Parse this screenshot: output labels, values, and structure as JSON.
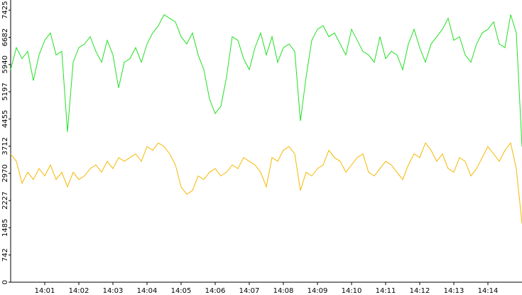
{
  "chart_data": {
    "type": "line",
    "categories": [
      null,
      null,
      null,
      null,
      null,
      null,
      "14:01",
      null,
      null,
      null,
      null,
      null,
      "14:02",
      null,
      null,
      null,
      null,
      null,
      "14:03",
      null,
      null,
      null,
      null,
      null,
      "14:04",
      null,
      null,
      null,
      null,
      null,
      "14:05",
      null,
      null,
      null,
      null,
      null,
      "14:06",
      null,
      null,
      null,
      null,
      null,
      "14:07",
      null,
      null,
      null,
      null,
      null,
      "14:08",
      null,
      null,
      null,
      null,
      null,
      "14:09",
      null,
      null,
      null,
      null,
      null,
      "14:10",
      null,
      null,
      null,
      null,
      null,
      "14:11",
      null,
      null,
      null,
      null,
      null,
      "14:12",
      null,
      null,
      null,
      null,
      null,
      "14:13",
      null,
      null,
      null,
      null,
      null,
      "14:14",
      null,
      null,
      null,
      null,
      null,
      null
    ],
    "series": [
      {
        "color": "#22e022",
        "values": [
          5800,
          6400,
          6100,
          6300,
          5500,
          6200,
          6600,
          6800,
          6200,
          6300,
          4100,
          6000,
          6400,
          6500,
          6700,
          6300,
          6000,
          6600,
          6200,
          5300,
          6000,
          6100,
          6400,
          6000,
          6500,
          6800,
          7000,
          7300,
          7200,
          7100,
          6700,
          6500,
          6800,
          6200,
          5800,
          5000,
          4600,
          4800,
          5600,
          6700,
          6600,
          6100,
          5800,
          6400,
          6800,
          6200,
          6700,
          6000,
          6400,
          6500,
          6300,
          4400,
          5600,
          6600,
          6900,
          7000,
          6700,
          6800,
          6500,
          6200,
          6900,
          6600,
          6300,
          6200,
          6000,
          6700,
          6100,
          6300,
          6200,
          5800,
          6500,
          6900,
          6400,
          6000,
          6500,
          6700,
          6900,
          7200,
          6600,
          6700,
          6200,
          6000,
          6500,
          6800,
          6900,
          7100,
          6500,
          6400,
          7300,
          6800,
          3700
        ]
      },
      {
        "color": "#f5b800",
        "values": [
          3500,
          3300,
          2700,
          3000,
          2800,
          3100,
          2900,
          3200,
          2800,
          3000,
          2600,
          3000,
          2800,
          2900,
          3100,
          3200,
          3000,
          3300,
          3100,
          3400,
          3300,
          3400,
          3500,
          3300,
          3700,
          3600,
          3800,
          3700,
          3500,
          3200,
          2600,
          2400,
          2500,
          2900,
          2800,
          3000,
          3100,
          2900,
          3000,
          3200,
          3100,
          3400,
          3300,
          3200,
          3000,
          2600,
          3400,
          3300,
          3600,
          3700,
          3500,
          2500,
          3000,
          2900,
          3100,
          3200,
          3600,
          3400,
          3300,
          3000,
          3200,
          3400,
          3500,
          3000,
          2900,
          3100,
          3300,
          3200,
          3000,
          2800,
          3200,
          3500,
          3400,
          3800,
          3600,
          3300,
          3500,
          3100,
          3000,
          3400,
          3300,
          2900,
          3100,
          3400,
          3700,
          3500,
          3300,
          3600,
          3800,
          3100,
          1600
        ]
      }
    ],
    "ylim": [
      0,
      7700
    ],
    "yticks": [
      0,
      742,
      1485,
      2227,
      2970,
      3712,
      4455,
      5197,
      5940,
      6682,
      7425
    ]
  }
}
